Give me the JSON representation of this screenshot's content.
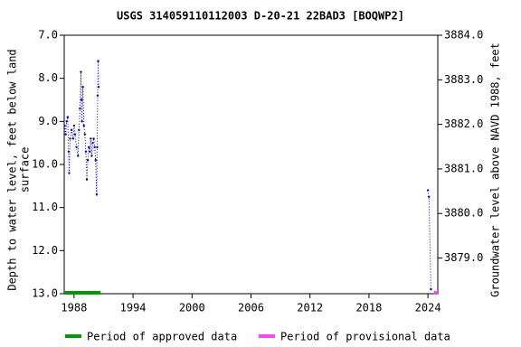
{
  "chart_data": {
    "type": "line",
    "title": "USGS 314059110112003 D-20-21 22BAD3 [BOQWP2]",
    "ylabel_lines": [
      "Depth to water level, feet below land",
      "surface"
    ],
    "y2label": "Groundwater level above NAVD 1988, feet",
    "xlim": [
      1987.0,
      2025.0
    ],
    "xticks": [
      1988,
      1994,
      2000,
      2006,
      2012,
      2018,
      2024
    ],
    "ylim": [
      13.0,
      7.0
    ],
    "yticks": [
      {
        "value": 7,
        "label": "7.0"
      },
      {
        "value": 8,
        "label": "8.0"
      },
      {
        "value": 9,
        "label": "9.0"
      },
      {
        "value": 10,
        "label": "10.0"
      },
      {
        "value": 11,
        "label": "11.0"
      },
      {
        "value": 12,
        "label": "12.0"
      },
      {
        "value": 13,
        "label": "13.0"
      }
    ],
    "y2lim": [
      3878.2,
      3884.0
    ],
    "y2ticks": [
      {
        "value": 3884,
        "label": "3884.0"
      },
      {
        "value": 3883,
        "label": "3883.0"
      },
      {
        "value": 3882,
        "label": "3882.0"
      },
      {
        "value": 3881,
        "label": "3881.0"
      },
      {
        "value": 3880,
        "label": "3880.0"
      },
      {
        "value": 3879,
        "label": "3879.0"
      }
    ],
    "series": [
      {
        "color": "#0000cc",
        "x": [
          1987.05,
          1987.15,
          1987.25,
          1987.35,
          1987.45,
          1987.5,
          1987.6,
          1987.75,
          1987.9,
          1988.0,
          1988.1,
          1988.25,
          1988.4,
          1988.5,
          1988.6,
          1988.7,
          1988.75,
          1988.8,
          1988.9,
          1989.0,
          1989.1,
          1989.2,
          1989.3,
          1989.4,
          1989.5,
          1989.6,
          1989.7,
          1989.8,
          1989.9,
          1990.0,
          1990.1,
          1990.2,
          1990.3,
          1990.35,
          1990.4,
          1990.45,
          1990.5,
          2000.0,
          2024.0,
          2024.1,
          2024.3
        ],
        "values": [
          9.1,
          9.3,
          9.0,
          8.9,
          9.7,
          10.2,
          9.4,
          9.2,
          9.4,
          9.1,
          9.3,
          9.6,
          9.8,
          9.2,
          8.7,
          7.85,
          8.5,
          9.0,
          8.2,
          9.1,
          9.3,
          9.7,
          10.35,
          9.9,
          9.6,
          9.7,
          9.4,
          9.8,
          9.5,
          9.4,
          9.6,
          9.9,
          10.7,
          9.6,
          8.4,
          7.6,
          8.2,
          null,
          10.6,
          10.75,
          12.9
        ]
      }
    ],
    "periods": [
      {
        "name": "Period of approved data",
        "color": "#009900",
        "x": [
          1987.0,
          1990.7
        ]
      },
      {
        "name": "Period of provisional data",
        "color": "#ff44ff",
        "x": [
          2024.6,
          2025.0
        ]
      }
    ]
  }
}
